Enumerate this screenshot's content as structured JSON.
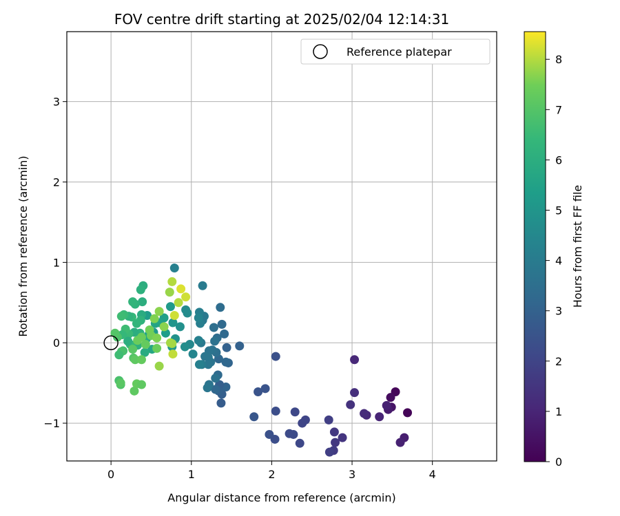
{
  "chart_data": {
    "type": "scatter",
    "title": "FOV centre drift starting at 2025/02/04 12:14:31",
    "xlabel": "Angular distance from reference (arcmin)",
    "ylabel": "Rotation from reference (arcmin)",
    "xlim": [
      -0.55,
      4.8
    ],
    "ylim": [
      -1.47,
      3.87
    ],
    "xticks": [
      0,
      1,
      2,
      3,
      4
    ],
    "yticks": [
      -1,
      0,
      1,
      2,
      3
    ],
    "xtick_labels": [
      "0",
      "1",
      "2",
      "3",
      "4"
    ],
    "ytick_labels": [
      "−1",
      "0",
      "1",
      "2",
      "3"
    ],
    "grid": true,
    "legend": {
      "position": "top-right",
      "entries": [
        "Reference platepar"
      ]
    },
    "reference_point": {
      "name": "Reference platepar",
      "x": 0,
      "y": 0
    },
    "colorbar": {
      "label": "Hours from first FF file",
      "range": [
        0,
        8.55
      ],
      "ticks": [
        0,
        1,
        2,
        3,
        4,
        5,
        6,
        7,
        8
      ],
      "tick_labels": [
        "0",
        "1",
        "2",
        "3",
        "4",
        "5",
        "6",
        "7",
        "8"
      ],
      "colormap": "viridis"
    },
    "points": [
      [
        3.69,
        -0.87,
        0.1
      ],
      [
        3.54,
        -0.61,
        0.15
      ],
      [
        3.48,
        -0.68,
        0.3
      ],
      [
        3.49,
        -0.8,
        0.5
      ],
      [
        3.45,
        -0.83,
        0.7
      ],
      [
        3.43,
        -0.78,
        0.9
      ],
      [
        3.65,
        -1.18,
        0.8
      ],
      [
        3.6,
        -1.24,
        0.9
      ],
      [
        3.34,
        -0.92,
        1.0
      ],
      [
        3.18,
        -0.9,
        1.1
      ],
      [
        3.15,
        -0.88,
        1.2
      ],
      [
        3.03,
        -0.62,
        1.3
      ],
      [
        3.03,
        -0.21,
        1.1
      ],
      [
        2.98,
        -0.77,
        1.4
      ],
      [
        2.88,
        -1.18,
        1.5
      ],
      [
        2.79,
        -1.24,
        1.6
      ],
      [
        2.78,
        -1.11,
        1.6
      ],
      [
        2.77,
        -1.34,
        1.7
      ],
      [
        2.72,
        -1.36,
        1.8
      ],
      [
        2.71,
        -0.96,
        1.8
      ],
      [
        2.42,
        -0.96,
        2.0
      ],
      [
        2.38,
        -1.0,
        2.0
      ],
      [
        2.35,
        -1.25,
        2.1
      ],
      [
        2.29,
        -0.86,
        2.1
      ],
      [
        2.27,
        -1.14,
        2.2
      ],
      [
        2.22,
        -1.13,
        2.2
      ],
      [
        2.05,
        -0.85,
        2.3
      ],
      [
        2.05,
        -0.17,
        2.4
      ],
      [
        2.04,
        -1.2,
        2.3
      ],
      [
        1.97,
        -1.14,
        2.4
      ],
      [
        1.92,
        -0.57,
        2.5
      ],
      [
        1.83,
        -0.61,
        2.5
      ],
      [
        1.78,
        -0.92,
        2.6
      ],
      [
        1.6,
        -0.04,
        3.0
      ],
      [
        1.46,
        -0.25,
        3.1
      ],
      [
        1.44,
        -0.06,
        3.0
      ],
      [
        1.43,
        -0.24,
        3.2
      ],
      [
        1.43,
        -0.55,
        3.1
      ],
      [
        1.41,
        0.11,
        3.3
      ],
      [
        1.38,
        0.23,
        3.3
      ],
      [
        1.38,
        -0.64,
        2.9
      ],
      [
        1.37,
        -0.75,
        2.8
      ],
      [
        1.36,
        0.44,
        3.4
      ],
      [
        1.35,
        -0.52,
        2.9
      ],
      [
        1.34,
        -0.2,
        3.2
      ],
      [
        1.34,
        -0.6,
        3.0
      ],
      [
        1.33,
        -0.4,
        3.3
      ],
      [
        1.32,
        0.06,
        3.4
      ],
      [
        1.31,
        -0.12,
        3.5
      ],
      [
        1.3,
        -0.58,
        3.2
      ],
      [
        1.3,
        -0.44,
        3.6
      ],
      [
        1.29,
        0.02,
        3.6
      ],
      [
        1.28,
        0.19,
        3.5
      ],
      [
        1.26,
        -0.09,
        3.6
      ],
      [
        1.24,
        -0.24,
        3.7
      ],
      [
        1.22,
        -0.52,
        3.7
      ],
      [
        1.22,
        -0.1,
        3.7
      ],
      [
        1.21,
        -0.18,
        3.8
      ],
      [
        1.21,
        -0.27,
        3.8
      ],
      [
        1.2,
        -0.56,
        3.8
      ],
      [
        1.17,
        -0.17,
        3.8
      ],
      [
        1.16,
        0.33,
        3.9
      ],
      [
        1.14,
        0.71,
        4.0
      ],
      [
        1.14,
        0.28,
        3.9
      ],
      [
        1.13,
        -0.27,
        4.0
      ],
      [
        1.12,
        0.0,
        3.9
      ],
      [
        1.11,
        0.24,
        4.1
      ],
      [
        1.1,
        0.38,
        4.1
      ],
      [
        1.1,
        -0.27,
        4.2
      ],
      [
        1.09,
        0.03,
        4.2
      ],
      [
        1.09,
        0.31,
        4.3
      ],
      [
        1.02,
        -0.14,
        4.4
      ],
      [
        0.98,
        -0.02,
        4.5
      ],
      [
        0.95,
        0.37,
        4.6
      ],
      [
        0.93,
        0.41,
        4.6
      ],
      [
        0.92,
        -0.05,
        4.7
      ],
      [
        0.86,
        0.2,
        4.8
      ],
      [
        0.8,
        0.05,
        4.9
      ],
      [
        0.79,
        0.93,
        4.2
      ],
      [
        0.77,
        0.25,
        5.0
      ],
      [
        0.76,
        -0.05,
        5.1
      ],
      [
        0.74,
        0.45,
        5.2
      ],
      [
        0.68,
        0.12,
        5.3
      ],
      [
        0.66,
        0.31,
        5.4
      ],
      [
        0.6,
        0.25,
        5.5
      ],
      [
        0.55,
        0.24,
        5.6
      ],
      [
        0.53,
        0.13,
        5.2
      ],
      [
        0.51,
        -0.08,
        5.7
      ],
      [
        0.47,
        0.1,
        5.5
      ],
      [
        0.45,
        0.34,
        5.3
      ],
      [
        0.44,
        0.05,
        5.8
      ],
      [
        0.42,
        -0.12,
        5.9
      ],
      [
        0.4,
        0.71,
        6.0
      ],
      [
        0.39,
        0.51,
        6.0
      ],
      [
        0.38,
        0.35,
        5.9
      ],
      [
        0.37,
        0.66,
        6.1
      ],
      [
        0.37,
        0.28,
        6.2
      ],
      [
        0.36,
        0.12,
        6.1
      ],
      [
        0.33,
        -0.03,
        6.1
      ],
      [
        0.32,
        0.24,
        6.3
      ],
      [
        0.3,
        0.48,
        6.2
      ],
      [
        0.29,
        0.13,
        6.0
      ],
      [
        0.27,
        0.51,
        6.3
      ],
      [
        0.26,
        0.32,
        6.4
      ],
      [
        0.24,
        -0.02,
        6.4
      ],
      [
        0.22,
        0.33,
        6.2
      ],
      [
        0.22,
        0.11,
        6.5
      ],
      [
        0.21,
        0.02,
        6.0
      ],
      [
        0.18,
        0.17,
        6.6
      ],
      [
        0.16,
        0.35,
        6.5
      ],
      [
        0.15,
        -0.1,
        6.7
      ],
      [
        0.14,
        0.1,
        6.4
      ],
      [
        0.13,
        -0.11,
        6.8
      ],
      [
        0.13,
        0.33,
        6.6
      ],
      [
        0.12,
        -0.52,
        6.9
      ],
      [
        0.1,
        -0.47,
        6.8
      ],
      [
        0.1,
        -0.15,
        6.6
      ],
      [
        0.08,
        0.07,
        6.9
      ],
      [
        0.05,
        0.12,
        7.0
      ],
      [
        0.12,
        -0.5,
        7.1
      ],
      [
        0.27,
        -0.08,
        7.1
      ],
      [
        0.28,
        -0.19,
        7.0
      ],
      [
        0.3,
        -0.21,
        7.2
      ],
      [
        0.29,
        -0.6,
        7.2
      ],
      [
        0.32,
        -0.51,
        7.3
      ],
      [
        0.38,
        -0.52,
        7.2
      ],
      [
        0.38,
        -0.21,
        7.3
      ],
      [
        0.33,
        0.03,
        7.4
      ],
      [
        0.38,
        0.07,
        7.4
      ],
      [
        0.43,
        -0.02,
        7.3
      ],
      [
        0.48,
        0.16,
        7.5
      ],
      [
        0.5,
        0.09,
        7.5
      ],
      [
        0.54,
        0.3,
        7.6
      ],
      [
        0.57,
        0.06,
        7.6
      ],
      [
        0.57,
        -0.07,
        7.4
      ],
      [
        0.6,
        0.39,
        7.7
      ],
      [
        0.6,
        -0.29,
        7.8
      ],
      [
        0.66,
        0.2,
        7.7
      ],
      [
        0.73,
        0.63,
        7.8
      ],
      [
        0.74,
        0.0,
        7.9
      ],
      [
        0.76,
        -0.01,
        7.9
      ],
      [
        0.76,
        0.76,
        8.0
      ],
      [
        0.77,
        -0.14,
        8.1
      ],
      [
        0.79,
        0.34,
        8.2
      ],
      [
        0.84,
        0.5,
        8.0
      ],
      [
        0.87,
        0.67,
        8.3
      ],
      [
        0.93,
        0.57,
        8.2
      ]
    ]
  }
}
